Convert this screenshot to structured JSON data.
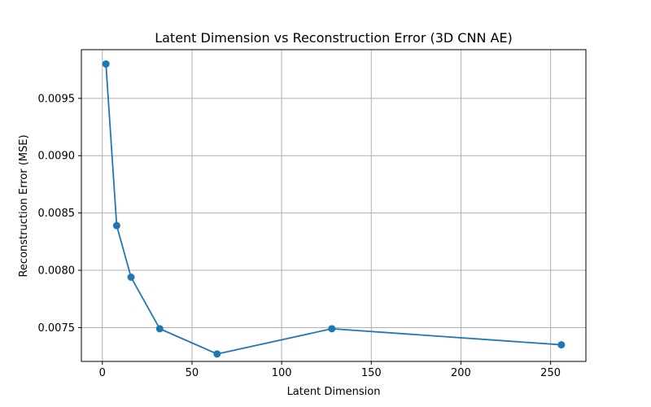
{
  "chart_data": {
    "type": "line",
    "title": "Latent Dimension vs Reconstruction Error (3D CNN AE)",
    "xlabel": "Latent Dimension",
    "ylabel": "Reconstruction Error (MSE)",
    "x": [
      2,
      8,
      16,
      32,
      64,
      128,
      256
    ],
    "series": [
      {
        "values": [
          0.0098,
          0.00839,
          0.00794,
          0.00749,
          0.00727,
          0.00749,
          0.00735
        ]
      }
    ],
    "xlim": [
      -11.7,
      269.7
    ],
    "ylim": [
      0.007205,
      0.009925
    ],
    "xticks": [
      0,
      50,
      100,
      150,
      200,
      250
    ],
    "xtick_labels": [
      "0",
      "50",
      "100",
      "150",
      "200",
      "250"
    ],
    "yticks": [
      0.0075,
      0.008,
      0.0085,
      0.009,
      0.0095
    ],
    "ytick_labels": [
      "0.0075",
      "0.0080",
      "0.0085",
      "0.0090",
      "0.0095"
    ],
    "grid": true,
    "markers": "circle",
    "colors": {
      "line": "#1f77b4",
      "grid": "#b0b0b0",
      "axes": "#000000"
    }
  }
}
